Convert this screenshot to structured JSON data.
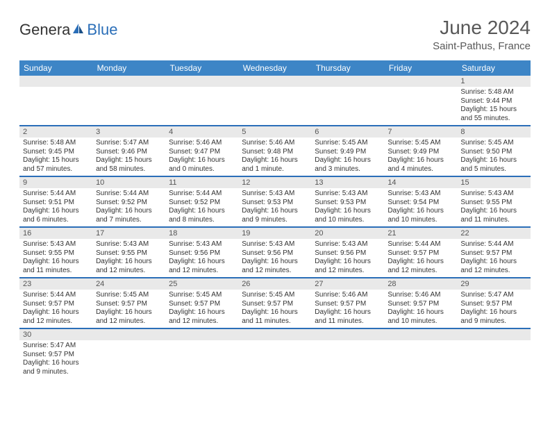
{
  "logo": {
    "general": "Genera",
    "blue": "Blue"
  },
  "header": {
    "title": "June 2024",
    "location": "Saint-Pathus, France"
  },
  "colors": {
    "header_bg": "#3d85c6",
    "header_text": "#ffffff",
    "daynum_bg": "#e9e9e9",
    "border": "#2a6eb8",
    "text": "#333333",
    "title_text": "#585858"
  },
  "weekdays": [
    "Sunday",
    "Monday",
    "Tuesday",
    "Wednesday",
    "Thursday",
    "Friday",
    "Saturday"
  ],
  "weeks": [
    [
      {
        "n": "",
        "sr": "",
        "ss": "",
        "dl": ""
      },
      {
        "n": "",
        "sr": "",
        "ss": "",
        "dl": ""
      },
      {
        "n": "",
        "sr": "",
        "ss": "",
        "dl": ""
      },
      {
        "n": "",
        "sr": "",
        "ss": "",
        "dl": ""
      },
      {
        "n": "",
        "sr": "",
        "ss": "",
        "dl": ""
      },
      {
        "n": "",
        "sr": "",
        "ss": "",
        "dl": ""
      },
      {
        "n": "1",
        "sr": "Sunrise: 5:48 AM",
        "ss": "Sunset: 9:44 PM",
        "dl": "Daylight: 15 hours and 55 minutes."
      }
    ],
    [
      {
        "n": "2",
        "sr": "Sunrise: 5:48 AM",
        "ss": "Sunset: 9:45 PM",
        "dl": "Daylight: 15 hours and 57 minutes."
      },
      {
        "n": "3",
        "sr": "Sunrise: 5:47 AM",
        "ss": "Sunset: 9:46 PM",
        "dl": "Daylight: 15 hours and 58 minutes."
      },
      {
        "n": "4",
        "sr": "Sunrise: 5:46 AM",
        "ss": "Sunset: 9:47 PM",
        "dl": "Daylight: 16 hours and 0 minutes."
      },
      {
        "n": "5",
        "sr": "Sunrise: 5:46 AM",
        "ss": "Sunset: 9:48 PM",
        "dl": "Daylight: 16 hours and 1 minute."
      },
      {
        "n": "6",
        "sr": "Sunrise: 5:45 AM",
        "ss": "Sunset: 9:49 PM",
        "dl": "Daylight: 16 hours and 3 minutes."
      },
      {
        "n": "7",
        "sr": "Sunrise: 5:45 AM",
        "ss": "Sunset: 9:49 PM",
        "dl": "Daylight: 16 hours and 4 minutes."
      },
      {
        "n": "8",
        "sr": "Sunrise: 5:45 AM",
        "ss": "Sunset: 9:50 PM",
        "dl": "Daylight: 16 hours and 5 minutes."
      }
    ],
    [
      {
        "n": "9",
        "sr": "Sunrise: 5:44 AM",
        "ss": "Sunset: 9:51 PM",
        "dl": "Daylight: 16 hours and 6 minutes."
      },
      {
        "n": "10",
        "sr": "Sunrise: 5:44 AM",
        "ss": "Sunset: 9:52 PM",
        "dl": "Daylight: 16 hours and 7 minutes."
      },
      {
        "n": "11",
        "sr": "Sunrise: 5:44 AM",
        "ss": "Sunset: 9:52 PM",
        "dl": "Daylight: 16 hours and 8 minutes."
      },
      {
        "n": "12",
        "sr": "Sunrise: 5:43 AM",
        "ss": "Sunset: 9:53 PM",
        "dl": "Daylight: 16 hours and 9 minutes."
      },
      {
        "n": "13",
        "sr": "Sunrise: 5:43 AM",
        "ss": "Sunset: 9:53 PM",
        "dl": "Daylight: 16 hours and 10 minutes."
      },
      {
        "n": "14",
        "sr": "Sunrise: 5:43 AM",
        "ss": "Sunset: 9:54 PM",
        "dl": "Daylight: 16 hours and 10 minutes."
      },
      {
        "n": "15",
        "sr": "Sunrise: 5:43 AM",
        "ss": "Sunset: 9:55 PM",
        "dl": "Daylight: 16 hours and 11 minutes."
      }
    ],
    [
      {
        "n": "16",
        "sr": "Sunrise: 5:43 AM",
        "ss": "Sunset: 9:55 PM",
        "dl": "Daylight: 16 hours and 11 minutes."
      },
      {
        "n": "17",
        "sr": "Sunrise: 5:43 AM",
        "ss": "Sunset: 9:55 PM",
        "dl": "Daylight: 16 hours and 12 minutes."
      },
      {
        "n": "18",
        "sr": "Sunrise: 5:43 AM",
        "ss": "Sunset: 9:56 PM",
        "dl": "Daylight: 16 hours and 12 minutes."
      },
      {
        "n": "19",
        "sr": "Sunrise: 5:43 AM",
        "ss": "Sunset: 9:56 PM",
        "dl": "Daylight: 16 hours and 12 minutes."
      },
      {
        "n": "20",
        "sr": "Sunrise: 5:43 AM",
        "ss": "Sunset: 9:56 PM",
        "dl": "Daylight: 16 hours and 12 minutes."
      },
      {
        "n": "21",
        "sr": "Sunrise: 5:44 AM",
        "ss": "Sunset: 9:57 PM",
        "dl": "Daylight: 16 hours and 12 minutes."
      },
      {
        "n": "22",
        "sr": "Sunrise: 5:44 AM",
        "ss": "Sunset: 9:57 PM",
        "dl": "Daylight: 16 hours and 12 minutes."
      }
    ],
    [
      {
        "n": "23",
        "sr": "Sunrise: 5:44 AM",
        "ss": "Sunset: 9:57 PM",
        "dl": "Daylight: 16 hours and 12 minutes."
      },
      {
        "n": "24",
        "sr": "Sunrise: 5:45 AM",
        "ss": "Sunset: 9:57 PM",
        "dl": "Daylight: 16 hours and 12 minutes."
      },
      {
        "n": "25",
        "sr": "Sunrise: 5:45 AM",
        "ss": "Sunset: 9:57 PM",
        "dl": "Daylight: 16 hours and 12 minutes."
      },
      {
        "n": "26",
        "sr": "Sunrise: 5:45 AM",
        "ss": "Sunset: 9:57 PM",
        "dl": "Daylight: 16 hours and 11 minutes."
      },
      {
        "n": "27",
        "sr": "Sunrise: 5:46 AM",
        "ss": "Sunset: 9:57 PM",
        "dl": "Daylight: 16 hours and 11 minutes."
      },
      {
        "n": "28",
        "sr": "Sunrise: 5:46 AM",
        "ss": "Sunset: 9:57 PM",
        "dl": "Daylight: 16 hours and 10 minutes."
      },
      {
        "n": "29",
        "sr": "Sunrise: 5:47 AM",
        "ss": "Sunset: 9:57 PM",
        "dl": "Daylight: 16 hours and 9 minutes."
      }
    ],
    [
      {
        "n": "30",
        "sr": "Sunrise: 5:47 AM",
        "ss": "Sunset: 9:57 PM",
        "dl": "Daylight: 16 hours and 9 minutes."
      },
      {
        "n": "",
        "sr": "",
        "ss": "",
        "dl": ""
      },
      {
        "n": "",
        "sr": "",
        "ss": "",
        "dl": ""
      },
      {
        "n": "",
        "sr": "",
        "ss": "",
        "dl": ""
      },
      {
        "n": "",
        "sr": "",
        "ss": "",
        "dl": ""
      },
      {
        "n": "",
        "sr": "",
        "ss": "",
        "dl": ""
      },
      {
        "n": "",
        "sr": "",
        "ss": "",
        "dl": ""
      }
    ]
  ]
}
